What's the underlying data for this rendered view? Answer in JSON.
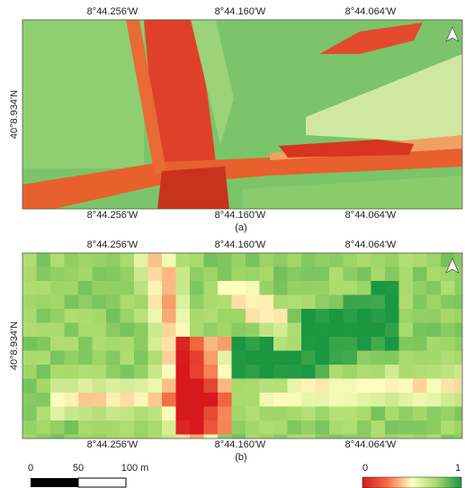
{
  "panels": [
    {
      "label": "(a)",
      "top_labels": [
        "8°44.256'W",
        "8°44.160'W",
        "8°44.064'W"
      ],
      "bottom_labels": [
        "8°44.256'W",
        "8°44.160'W",
        "8°44.064'W"
      ],
      "left_label": "40°8.934'N"
    },
    {
      "label": "(b)",
      "top_labels": [
        "8°44.256'W",
        "8°44.160'W",
        "8°44.064'W"
      ],
      "bottom_labels": [
        "8°44.256'W",
        "8°44.160'W",
        "8°44.064'W"
      ],
      "left_label": "40°8.934'N"
    }
  ],
  "scale_bar": {
    "labels": [
      "0",
      "50",
      "100 m"
    ]
  },
  "colorbar": {
    "labels": [
      "0",
      "1"
    ]
  }
}
